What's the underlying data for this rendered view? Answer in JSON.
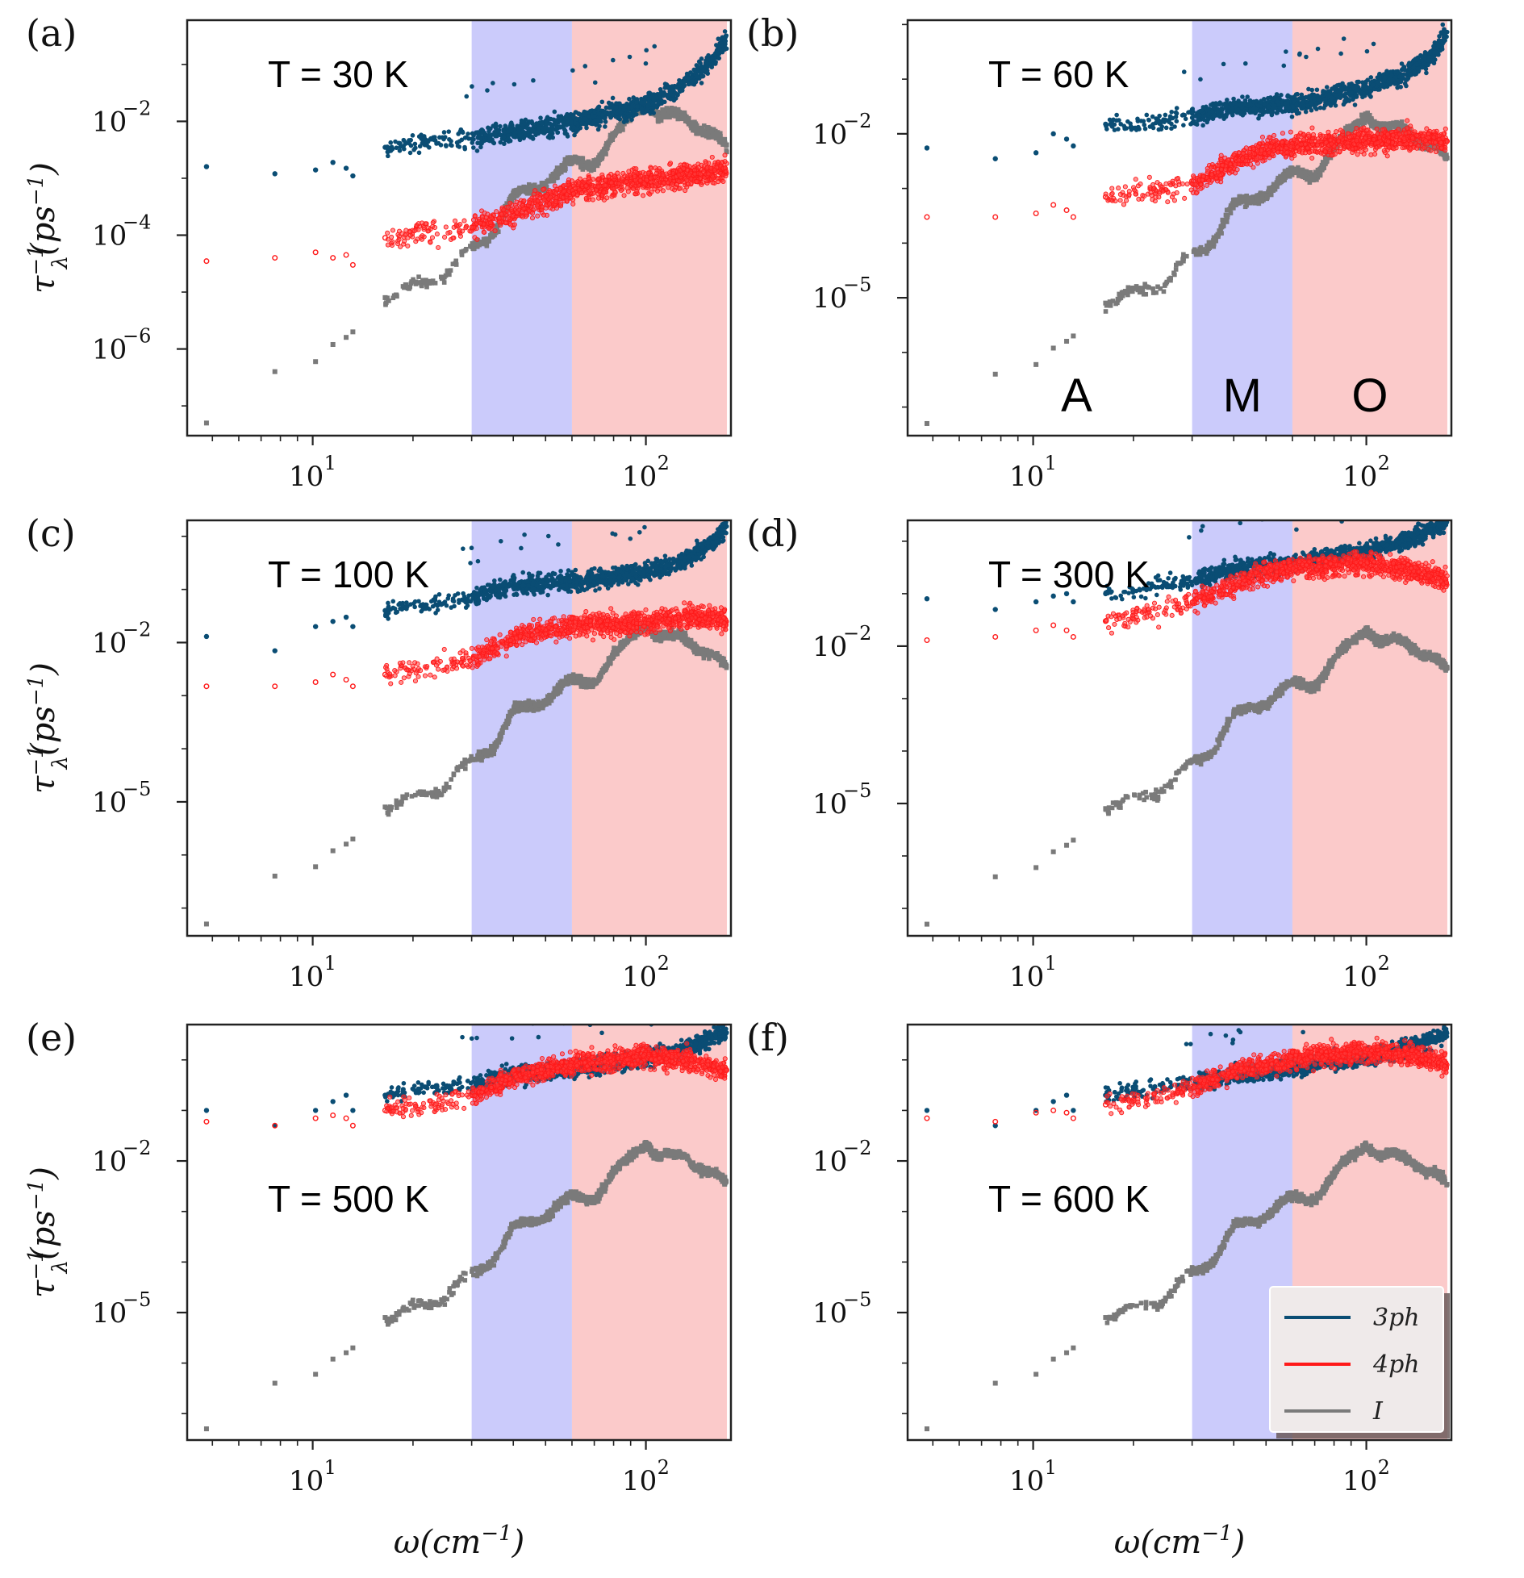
{
  "chart_data": {
    "type": "scatter",
    "shared": {
      "xscale": "log",
      "yscale": "log",
      "xlim": [
        4.2,
        180
      ],
      "x_ticks": [
        {
          "value": 10,
          "base": "10",
          "exp": "1"
        },
        {
          "value": 100,
          "base": "10",
          "exp": "2"
        }
      ],
      "xlabel": {
        "main": "ω(cm",
        "sup": "−1",
        "close": ")"
      },
      "ylabel": {
        "main": "τ",
        "sup": "−1",
        "sub": "λ",
        "rest": "(ps",
        "sup2": "−1",
        "close": ")"
      },
      "regions": [
        {
          "label": "A",
          "x": [
            4.2,
            30
          ],
          "color": "#ffffff"
        },
        {
          "label": "M",
          "x": [
            30,
            60
          ],
          "color": "#cbcbfb"
        },
        {
          "label": "O",
          "x": [
            60,
            175
          ],
          "color": "#fbcaca"
        }
      ],
      "series_colors": {
        "3ph": "#0a4d74",
        "4ph": "#ff1a1a",
        "I": "#7a7a7a"
      },
      "legend": {
        "placement": "lower-right",
        "panel": "f",
        "entries": [
          {
            "name": "3ph",
            "color": "#0a4d74"
          },
          {
            "name": "4ph",
            "color": "#ff1a1a"
          },
          {
            "name": "I",
            "color": "#7a7a7a"
          }
        ]
      }
    },
    "panels": [
      {
        "letter": "(a)",
        "title": "T = 30 K",
        "ylim": [
          3e-08,
          0.6
        ],
        "y_ticks": [
          {
            "value": 0.01,
            "base": "10",
            "exp": "−2"
          },
          {
            "value": 0.0001,
            "base": "10",
            "exp": "−4"
          },
          {
            "value": 1e-06,
            "base": "10",
            "exp": "−6"
          }
        ],
        "series": [
          {
            "name": "3ph",
            "x": [
              4.8,
              7.7,
              10.2,
              11.5,
              12.6,
              13.2,
              16.5,
              20,
              25,
              30,
              40,
              50,
              60,
              80,
              100,
              130,
              160,
              175
            ],
            "y": [
              0.0016,
              0.0012,
              0.0014,
              0.0019,
              0.0015,
              0.0011,
              0.0035,
              0.0042,
              0.0048,
              0.0052,
              0.0065,
              0.008,
              0.0095,
              0.014,
              0.02,
              0.045,
              0.13,
              0.3
            ]
          },
          {
            "name": "4ph",
            "x": [
              4.8,
              7.7,
              10.2,
              11.5,
              12.6,
              13.2,
              16.5,
              20,
              25,
              30,
              40,
              50,
              60,
              80,
              100,
              130,
              160,
              175
            ],
            "y": [
              3.5e-05,
              4e-05,
              5e-05,
              4e-05,
              4.5e-05,
              3e-05,
              9e-05,
              0.00011,
              0.00013,
              0.00014,
              0.00025,
              0.0004,
              0.0006,
              0.0008,
              0.0009,
              0.0011,
              0.0013,
              0.0015
            ]
          },
          {
            "name": "I",
            "x": [
              4.8,
              7.7,
              10.2,
              11.5,
              12.6,
              13.2,
              16.5,
              20,
              25,
              30,
              35,
              40,
              50,
              60,
              70,
              80,
              90,
              100,
              110,
              130,
              160,
              175
            ],
            "y": [
              5e-08,
              4e-07,
              6e-07,
              1.2e-06,
              1.6e-06,
              2e-06,
              8e-06,
              1.2e-05,
              2e-05,
              6e-05,
              0.00012,
              0.00045,
              0.0009,
              0.0018,
              0.002,
              0.005,
              0.012,
              0.025,
              0.012,
              0.012,
              0.006,
              0.003
            ]
          }
        ]
      },
      {
        "letter": "(b)",
        "title": "T = 60 K",
        "ylim": [
          3e-08,
          1.2
        ],
        "y_ticks": [
          {
            "value": 0.01,
            "base": "10",
            "exp": "−2"
          },
          {
            "value": 1e-05,
            "base": "10",
            "exp": "−5"
          }
        ],
        "region_labels": true,
        "series": [
          {
            "name": "3ph",
            "x": [
              4.8,
              7.7,
              10.2,
              11.5,
              12.6,
              13.2,
              16.5,
              20,
              25,
              30,
              40,
              50,
              60,
              80,
              100,
              130,
              160,
              175
            ],
            "y": [
              0.0055,
              0.0035,
              0.0045,
              0.01,
              0.008,
              0.006,
              0.015,
              0.015,
              0.018,
              0.02,
              0.03,
              0.032,
              0.035,
              0.05,
              0.07,
              0.12,
              0.3,
              0.8
            ]
          },
          {
            "name": "4ph",
            "x": [
              4.8,
              7.7,
              10.2,
              11.5,
              12.6,
              13.2,
              16.5,
              20,
              25,
              30,
              40,
              50,
              60,
              80,
              100,
              130,
              160,
              175
            ],
            "y": [
              0.0003,
              0.0003,
              0.00035,
              0.0005,
              0.0004,
              0.0003,
              0.0007,
              0.0008,
              0.0009,
              0.0012,
              0.003,
              0.005,
              0.006,
              0.007,
              0.0075,
              0.008,
              0.008,
              0.007
            ]
          },
          {
            "name": "I",
            "x": [
              4.8,
              7.7,
              10.2,
              11.5,
              12.6,
              13.2,
              16.5,
              20,
              25,
              30,
              35,
              40,
              50,
              60,
              70,
              80,
              90,
              100,
              110,
              130,
              160,
              175
            ],
            "y": [
              5e-08,
              4e-07,
              6e-07,
              1.2e-06,
              1.6e-06,
              2e-06,
              8e-06,
              1.2e-05,
              2e-05,
              6e-05,
              0.00012,
              0.00045,
              0.0009,
              0.0018,
              0.002,
              0.005,
              0.012,
              0.025,
              0.012,
              0.012,
              0.006,
              0.003
            ]
          }
        ]
      },
      {
        "letter": "(c)",
        "title": "T = 100 K",
        "ylim": [
          3e-08,
          2.0
        ],
        "y_ticks": [
          {
            "value": 0.01,
            "base": "10",
            "exp": "−2"
          },
          {
            "value": 1e-05,
            "base": "10",
            "exp": "−5"
          }
        ],
        "series": [
          {
            "name": "3ph",
            "x": [
              4.8,
              7.7,
              10.2,
              11.5,
              12.6,
              13.2,
              16.5,
              20,
              25,
              30,
              40,
              50,
              60,
              80,
              100,
              130,
              160,
              175
            ],
            "y": [
              0.013,
              0.007,
              0.02,
              0.025,
              0.03,
              0.02,
              0.04,
              0.05,
              0.06,
              0.07,
              0.12,
              0.13,
              0.14,
              0.17,
              0.22,
              0.35,
              0.8,
              1.5
            ]
          },
          {
            "name": "4ph",
            "x": [
              4.8,
              7.7,
              10.2,
              11.5,
              12.6,
              13.2,
              16.5,
              20,
              25,
              30,
              40,
              50,
              60,
              80,
              100,
              130,
              160,
              175
            ],
            "y": [
              0.0015,
              0.0015,
              0.0018,
              0.0025,
              0.002,
              0.0015,
              0.0025,
              0.003,
              0.004,
              0.005,
              0.012,
              0.018,
              0.02,
              0.022,
              0.025,
              0.03,
              0.03,
              0.025
            ]
          },
          {
            "name": "I",
            "x": [
              4.8,
              7.7,
              10.2,
              11.5,
              12.6,
              13.2,
              16.5,
              20,
              25,
              30,
              35,
              40,
              50,
              60,
              70,
              80,
              90,
              100,
              110,
              130,
              160,
              175
            ],
            "y": [
              5e-08,
              4e-07,
              6e-07,
              1.2e-06,
              1.6e-06,
              2e-06,
              8e-06,
              1.2e-05,
              2e-05,
              6e-05,
              0.00012,
              0.00045,
              0.0009,
              0.0018,
              0.002,
              0.005,
              0.012,
              0.025,
              0.012,
              0.012,
              0.006,
              0.003
            ]
          }
        ]
      },
      {
        "letter": "(d)",
        "title": "T = 300 K",
        "ylim": [
          3e-08,
          2.5
        ],
        "y_ticks": [
          {
            "value": 0.01,
            "base": "10",
            "exp": "−2"
          },
          {
            "value": 1e-05,
            "base": "10",
            "exp": "−5"
          }
        ],
        "series": [
          {
            "name": "3ph",
            "x": [
              4.8,
              7.7,
              10.2,
              11.5,
              12.6,
              13.2,
              16.5,
              20,
              25,
              30,
              40,
              50,
              60,
              80,
              100,
              130,
              160,
              175
            ],
            "y": [
              0.08,
              0.05,
              0.07,
              0.09,
              0.1,
              0.07,
              0.1,
              0.12,
              0.15,
              0.18,
              0.3,
              0.35,
              0.4,
              0.5,
              0.65,
              1.0,
              1.8,
              2.2
            ]
          },
          {
            "name": "4ph",
            "x": [
              4.8,
              7.7,
              10.2,
              11.5,
              12.6,
              13.2,
              16.5,
              20,
              25,
              30,
              40,
              50,
              60,
              80,
              100,
              130,
              160,
              175
            ],
            "y": [
              0.013,
              0.015,
              0.02,
              0.025,
              0.02,
              0.015,
              0.03,
              0.04,
              0.05,
              0.07,
              0.15,
              0.25,
              0.3,
              0.35,
              0.38,
              0.3,
              0.22,
              0.18
            ]
          },
          {
            "name": "I",
            "x": [
              4.8,
              7.7,
              10.2,
              11.5,
              12.6,
              13.2,
              16.5,
              20,
              25,
              30,
              35,
              40,
              50,
              60,
              70,
              80,
              90,
              100,
              110,
              130,
              160,
              175
            ],
            "y": [
              5e-08,
              4e-07,
              6e-07,
              1.2e-06,
              1.6e-06,
              2e-06,
              8e-06,
              1.2e-05,
              2e-05,
              6e-05,
              0.00012,
              0.00045,
              0.0009,
              0.0018,
              0.002,
              0.005,
              0.012,
              0.025,
              0.012,
              0.012,
              0.006,
              0.003
            ]
          }
        ]
      },
      {
        "letter": "(e)",
        "title": "T = 500 K",
        "ylim": [
          3e-08,
          5.0
        ],
        "y_ticks": [
          {
            "value": 0.01,
            "base": "10",
            "exp": "−2"
          },
          {
            "value": 1e-05,
            "base": "10",
            "exp": "−5"
          }
        ],
        "series": [
          {
            "name": "3ph",
            "x": [
              4.8,
              7.7,
              10.2,
              11.5,
              12.6,
              13.2,
              16.5,
              20,
              25,
              30,
              40,
              50,
              60,
              80,
              100,
              130,
              160,
              175
            ],
            "y": [
              0.1,
              0.05,
              0.1,
              0.15,
              0.2,
              0.1,
              0.2,
              0.25,
              0.3,
              0.35,
              0.5,
              0.6,
              0.7,
              0.9,
              1.1,
              1.6,
              2.8,
              3.5
            ]
          },
          {
            "name": "4ph",
            "x": [
              4.8,
              7.7,
              10.2,
              11.5,
              12.6,
              13.2,
              16.5,
              20,
              25,
              30,
              40,
              50,
              60,
              80,
              100,
              130,
              160,
              175
            ],
            "y": [
              0.06,
              0.05,
              0.07,
              0.08,
              0.07,
              0.05,
              0.1,
              0.12,
              0.15,
              0.2,
              0.45,
              0.6,
              0.8,
              1.0,
              1.2,
              1.0,
              0.7,
              0.6
            ]
          },
          {
            "name": "I",
            "x": [
              4.8,
              7.7,
              10.2,
              11.5,
              12.6,
              13.2,
              16.5,
              20,
              25,
              30,
              35,
              40,
              50,
              60,
              70,
              80,
              90,
              100,
              110,
              130,
              160,
              175
            ],
            "y": [
              5e-08,
              4e-07,
              6e-07,
              1.2e-06,
              1.6e-06,
              2e-06,
              8e-06,
              1.2e-05,
              2e-05,
              6e-05,
              0.00012,
              0.00045,
              0.0009,
              0.0018,
              0.002,
              0.005,
              0.012,
              0.025,
              0.012,
              0.012,
              0.006,
              0.003
            ]
          }
        ]
      },
      {
        "letter": "(f)",
        "title": "T = 600 K",
        "ylim": [
          3e-08,
          5.0
        ],
        "y_ticks": [
          {
            "value": 0.01,
            "base": "10",
            "exp": "−2"
          },
          {
            "value": 1e-05,
            "base": "10",
            "exp": "−5"
          }
        ],
        "series": [
          {
            "name": "3ph",
            "x": [
              4.8,
              7.7,
              10.2,
              11.5,
              12.6,
              13.2,
              16.5,
              20,
              25,
              30,
              40,
              50,
              60,
              80,
              100,
              130,
              160,
              175
            ],
            "y": [
              0.1,
              0.05,
              0.1,
              0.15,
              0.2,
              0.1,
              0.2,
              0.25,
              0.3,
              0.35,
              0.5,
              0.6,
              0.7,
              0.9,
              1.1,
              1.6,
              2.8,
              3.5
            ]
          },
          {
            "name": "4ph",
            "x": [
              4.8,
              7.7,
              10.2,
              11.5,
              12.6,
              13.2,
              16.5,
              20,
              25,
              30,
              40,
              50,
              60,
              80,
              100,
              130,
              160,
              175
            ],
            "y": [
              0.07,
              0.06,
              0.09,
              0.1,
              0.09,
              0.07,
              0.13,
              0.15,
              0.2,
              0.28,
              0.6,
              0.8,
              1.0,
              1.3,
              1.5,
              1.3,
              1.0,
              0.8
            ]
          },
          {
            "name": "I",
            "x": [
              4.8,
              7.7,
              10.2,
              11.5,
              12.6,
              13.2,
              16.5,
              20,
              25,
              30,
              35,
              40,
              50,
              60,
              70,
              80,
              90,
              100,
              110,
              130,
              160,
              175
            ],
            "y": [
              5e-08,
              4e-07,
              6e-07,
              1.2e-06,
              1.6e-06,
              2e-06,
              8e-06,
              1.2e-05,
              2e-05,
              6e-05,
              0.00012,
              0.00045,
              0.0009,
              0.0018,
              0.002,
              0.005,
              0.012,
              0.025,
              0.012,
              0.012,
              0.006,
              0.003
            ]
          }
        ]
      }
    ]
  }
}
